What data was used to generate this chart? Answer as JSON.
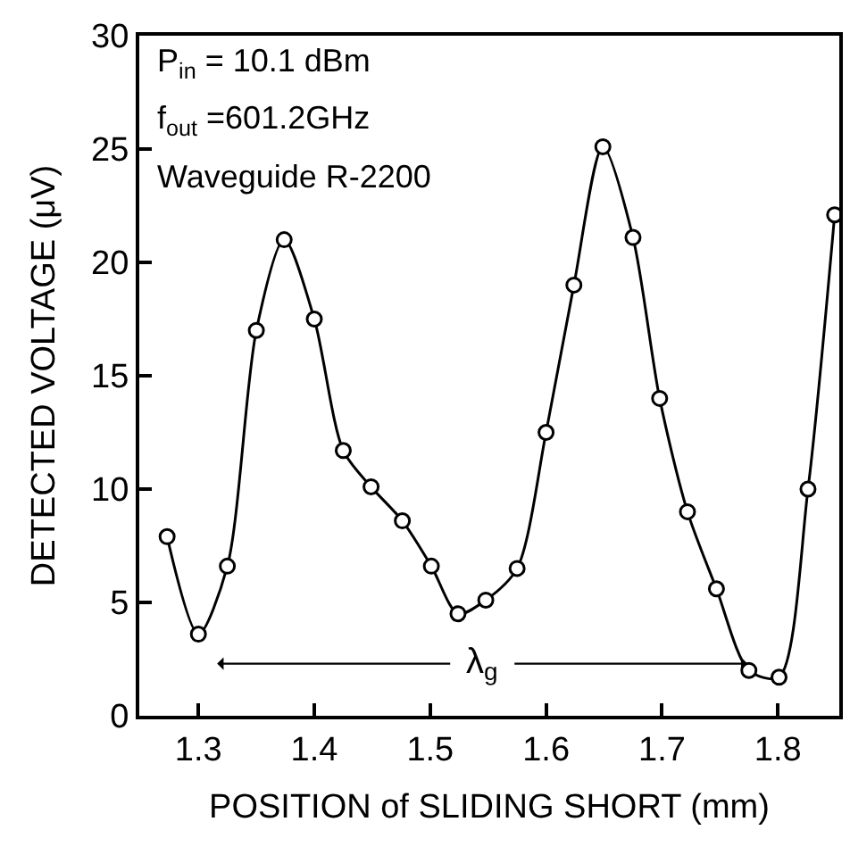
{
  "chart_data": {
    "type": "line",
    "xlabel": "POSITION of SLIDING SHORT (mm)",
    "ylabel": "DETECTED VOLTAGE (μV)",
    "x": [
      1.273,
      1.3,
      1.325,
      1.35,
      1.374,
      1.4,
      1.425,
      1.449,
      1.476,
      1.501,
      1.524,
      1.548,
      1.575,
      1.6,
      1.624,
      1.649,
      1.675,
      1.698,
      1.722,
      1.747,
      1.775,
      1.801,
      1.826,
      1.849
    ],
    "series": [
      {
        "color": "#000000",
        "values": [
          7.9,
          3.6,
          6.6,
          17.0,
          21.0,
          17.5,
          11.7,
          10.1,
          8.6,
          6.6,
          4.5,
          5.1,
          6.5,
          12.5,
          19.0,
          25.1,
          21.1,
          14.0,
          9.0,
          5.6,
          2.0,
          1.7,
          10.0,
          22.1
        ]
      }
    ],
    "xlim": [
      1.249,
      1.853
    ],
    "ylim": [
      0,
      30
    ],
    "xticks": [
      1.3,
      1.4,
      1.5,
      1.6,
      1.7,
      1.8
    ],
    "yticks": [
      0,
      5,
      10,
      15,
      20,
      25,
      30
    ],
    "marker": "circle",
    "line_style": "solid",
    "legend": false,
    "annotations": [
      "P$_{in}$ = 10.1 dBm",
      "f$_{out}$ =601.2GHz",
      "Waveguide R-2200",
      {
        "text": "λ$_{g}$",
        "x": 1.545,
        "y": 2.3
      }
    ]
  }
}
